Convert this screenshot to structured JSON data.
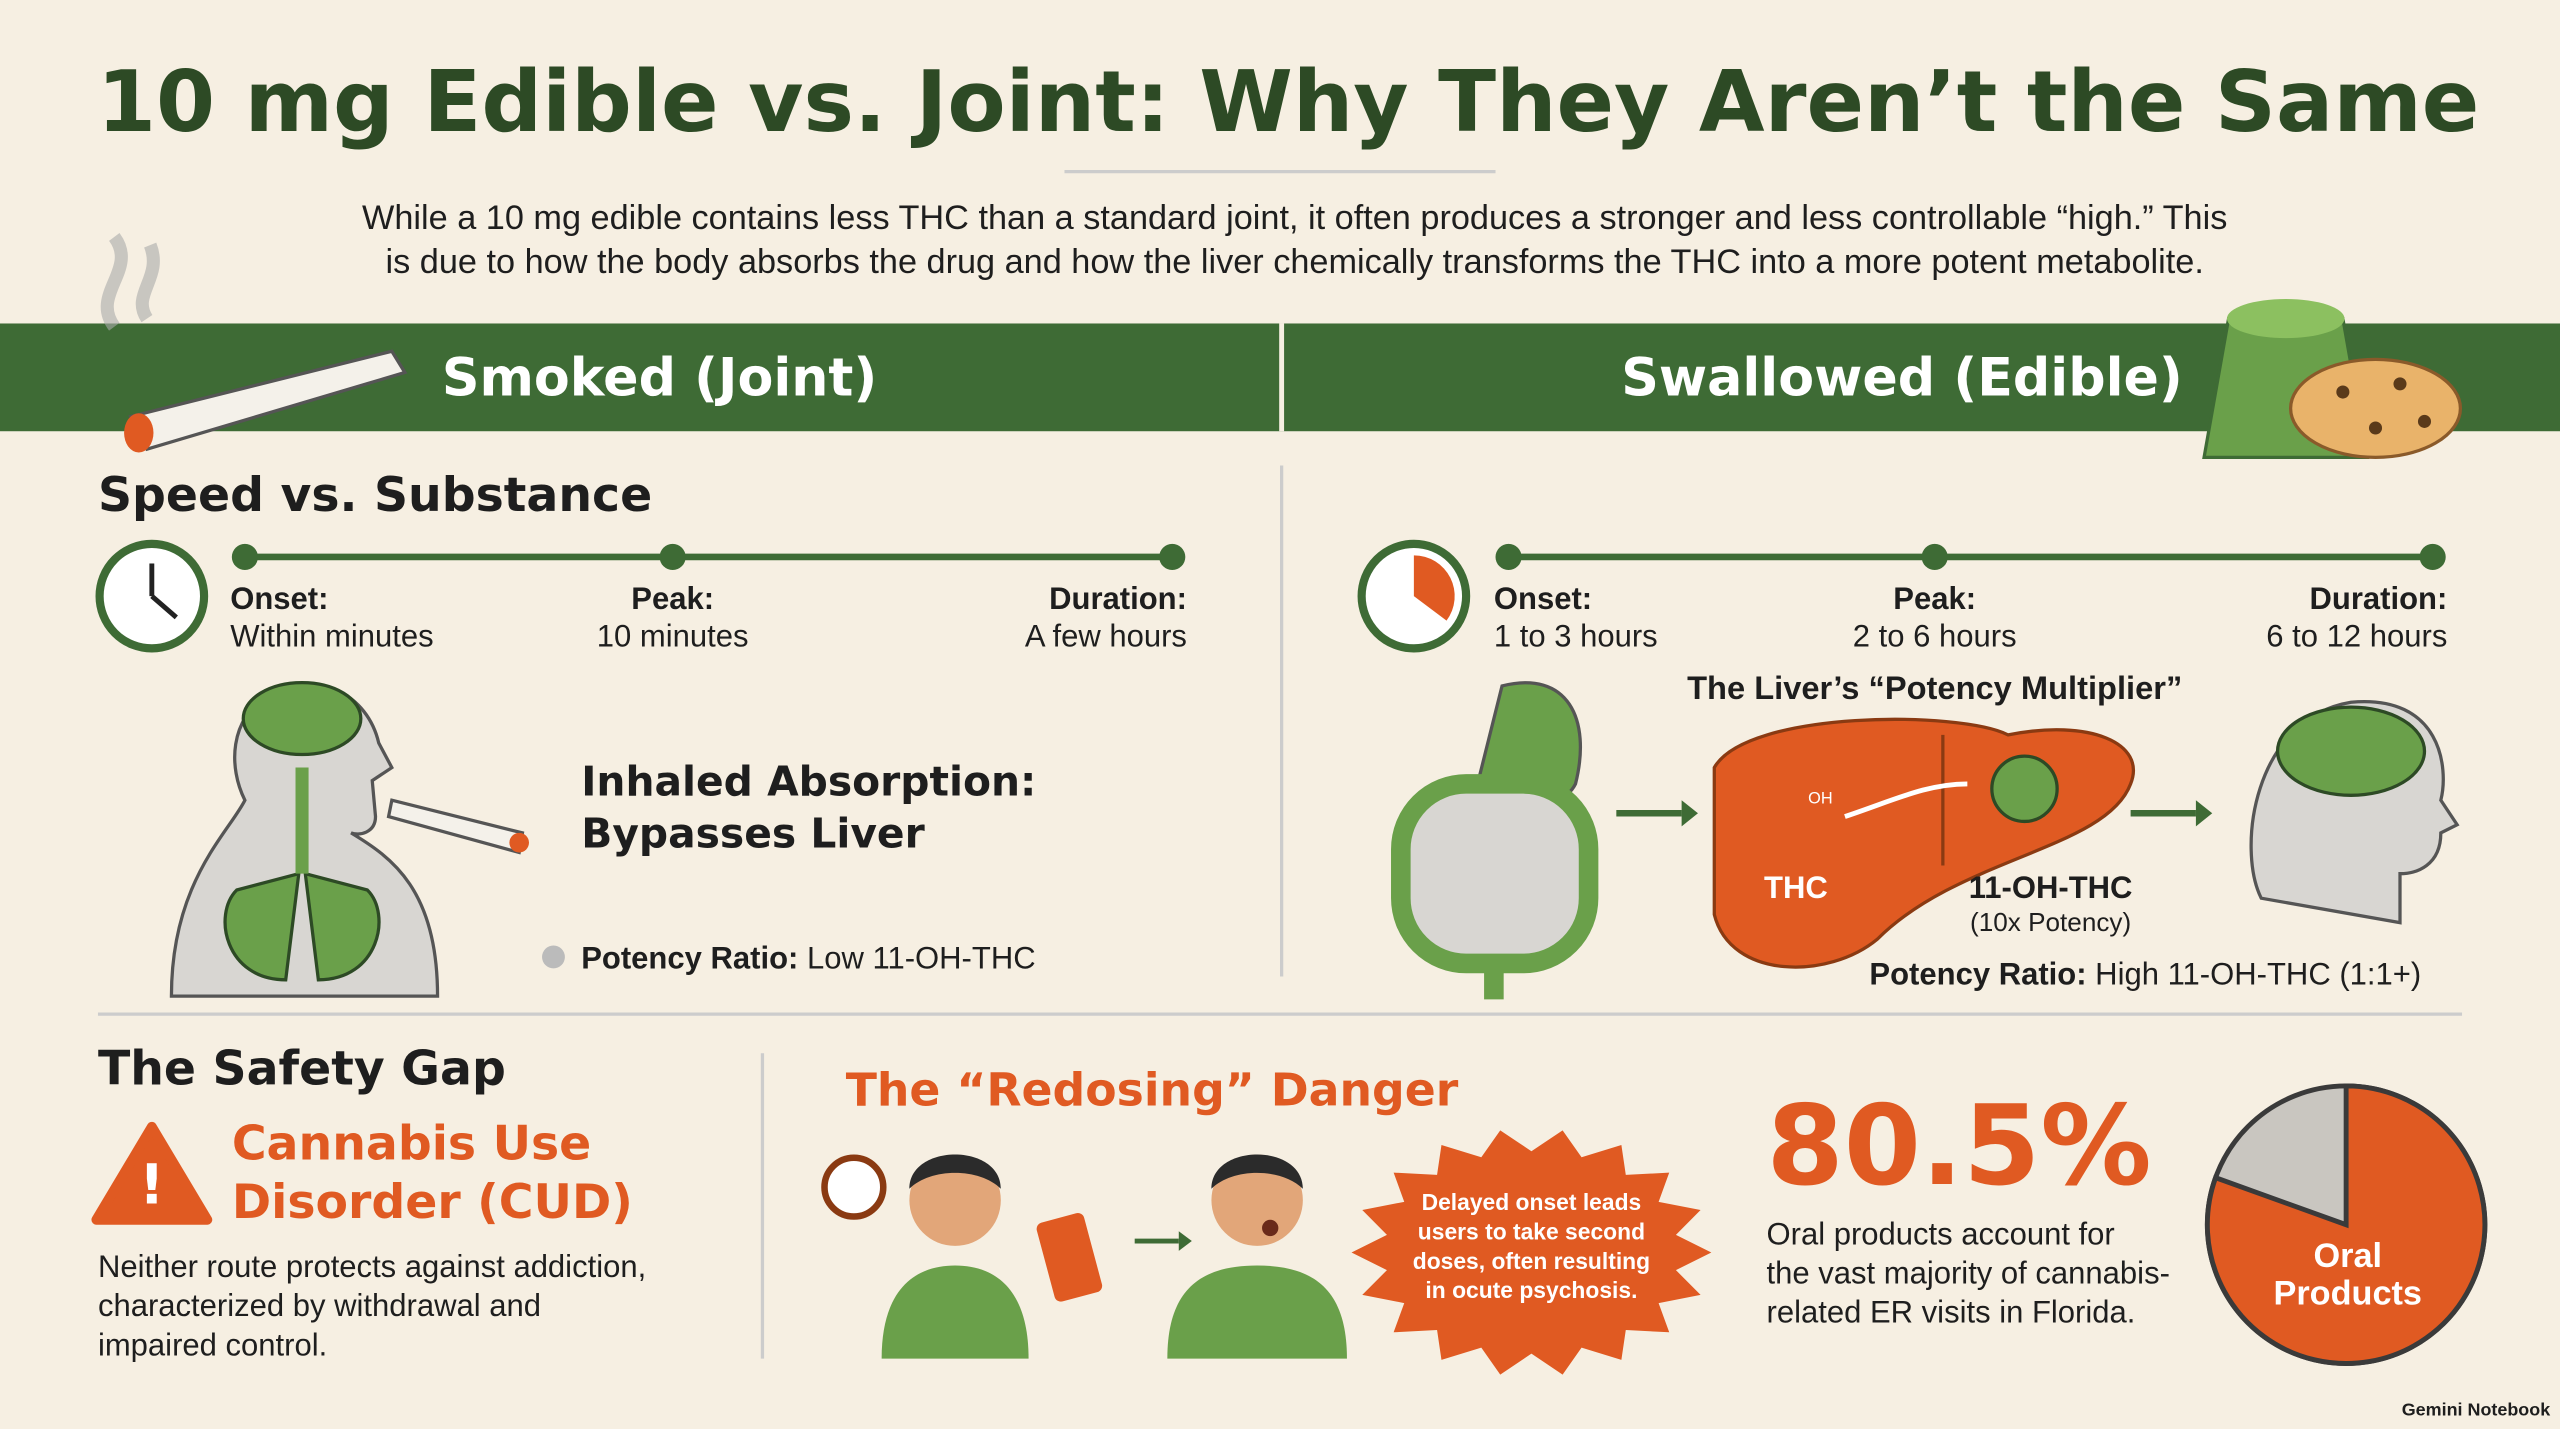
{
  "title": "10 mg Edible vs. Joint: Why They Aren’t the Same",
  "intro": [
    "While a 10 mg edible contains less THC than a standard joint, it often produces a stronger and less controllable “high.” This",
    "is due to how the body absorbs the drug and how the liver chemically transforms the THC into a more potent metabolite."
  ],
  "smoked": {
    "heading": "Smoked (Joint)",
    "section": "Speed vs. Substance",
    "timeline": [
      {
        "label": "Onset:",
        "value": "Within minutes"
      },
      {
        "label": "Peak:",
        "value": "10 minutes"
      },
      {
        "label": "Duration:",
        "value": "A few hours"
      }
    ],
    "absorption": [
      "Inhaled Absorption:",
      "Bypasses Liver"
    ],
    "potency_label": "Potency Ratio:",
    "potency_value": "Low 11-OH-THC"
  },
  "swallowed": {
    "heading": "Swallowed (Edible)",
    "timeline": [
      {
        "label": "Onset:",
        "value": "1 to 3 hours"
      },
      {
        "label": "Peak:",
        "value": "2 to 6 hours"
      },
      {
        "label": "Duration:",
        "value": "6 to 12 hours"
      }
    ],
    "liver_title": "The Liver’s “Potency Multiplier”",
    "oh": "OH",
    "thc": "THC",
    "metabolite": "11-OH-THC",
    "metabolite_note": "(10x Potency)",
    "potency_label": "Potency Ratio:",
    "potency_value": "High 11-OH-THC (1:1+)"
  },
  "safety": {
    "heading": "The Safety Gap",
    "cud_title": [
      "Cannabis Use",
      "Disorder (CUD)"
    ],
    "cud_text": [
      "Neither route protects against addiction,",
      "characterized by withdrawal and",
      "impaired control."
    ],
    "redosing_title": "The “Redosing” Danger",
    "burst_text": [
      "Delayed onset leads",
      "users to take second",
      "doses, often resulting",
      "in ocute psychosis."
    ],
    "stat": {
      "value": 80.5,
      "label": "80.5%"
    },
    "stat_text": [
      "Oral products account for",
      "the vast majority of cannabis-",
      "related ER visits in Florida."
    ],
    "pie_label": [
      "Oral",
      "Products"
    ]
  },
  "footer": "Gemini Notebook"
}
